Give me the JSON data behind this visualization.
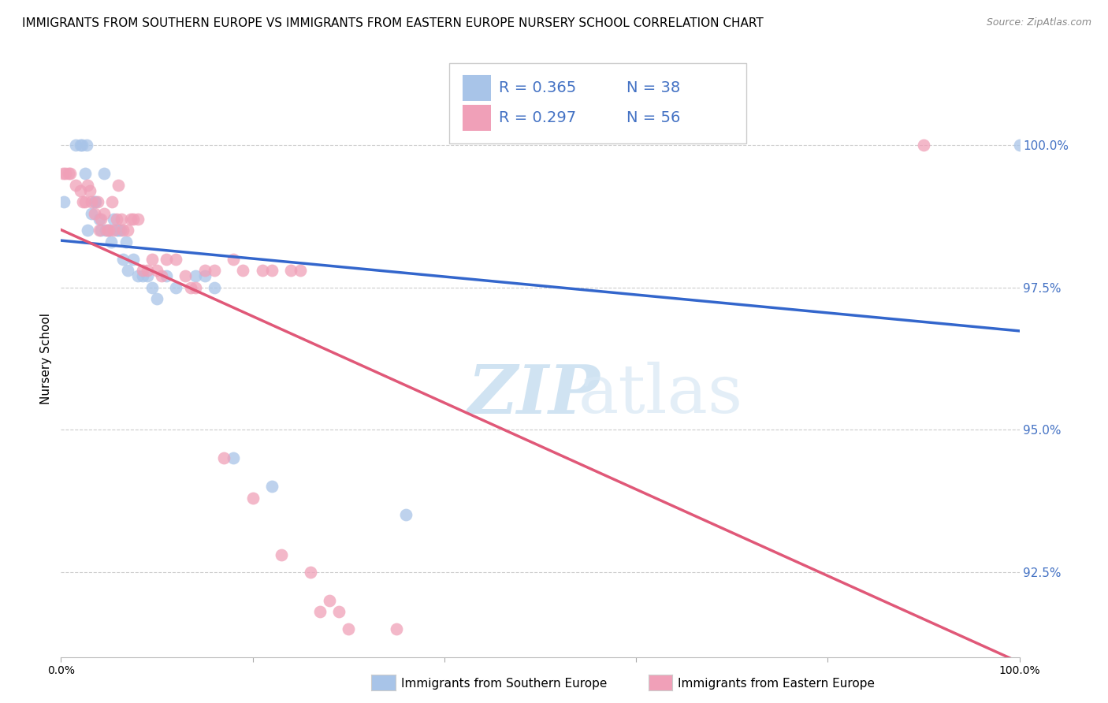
{
  "title": "IMMIGRANTS FROM SOUTHERN EUROPE VS IMMIGRANTS FROM EASTERN EUROPE NURSERY SCHOOL CORRELATION CHART",
  "source": "Source: ZipAtlas.com",
  "ylabel": "Nursery School",
  "watermark_zip": "ZIP",
  "watermark_atlas": "atlas",
  "series_blue": {
    "label": "Immigrants from Southern Europe",
    "R": 0.365,
    "N": 38,
    "color": "#a8c4e8",
    "line_color": "#3366cc",
    "x": [
      0.3,
      1.5,
      2.0,
      2.2,
      2.5,
      2.7,
      2.8,
      3.2,
      3.5,
      3.6,
      4.0,
      4.2,
      4.5,
      4.7,
      5.0,
      5.2,
      5.5,
      5.8,
      6.0,
      6.2,
      6.5,
      6.8,
      7.0,
      7.5,
      8.0,
      8.5,
      9.0,
      9.5,
      10.0,
      11.0,
      12.0,
      14.0,
      15.0,
      16.0,
      18.0,
      22.0,
      36.0,
      100.0
    ],
    "y": [
      99.0,
      100.0,
      100.0,
      100.0,
      99.5,
      100.0,
      98.5,
      98.8,
      99.0,
      99.0,
      98.7,
      98.5,
      99.5,
      98.5,
      98.5,
      98.3,
      98.7,
      98.5,
      98.5,
      98.5,
      98.0,
      98.3,
      97.8,
      98.0,
      97.7,
      97.7,
      97.7,
      97.5,
      97.3,
      97.7,
      97.5,
      97.7,
      97.7,
      97.5,
      94.5,
      94.0,
      93.5,
      100.0
    ]
  },
  "series_pink": {
    "label": "Immigrants from Eastern Europe",
    "R": 0.297,
    "N": 56,
    "color": "#f0a0b8",
    "line_color": "#e05878",
    "x": [
      0.2,
      0.5,
      0.8,
      1.0,
      1.5,
      2.0,
      2.3,
      2.5,
      2.8,
      3.0,
      3.2,
      3.5,
      3.8,
      4.0,
      4.2,
      4.5,
      4.8,
      5.0,
      5.3,
      5.5,
      5.8,
      6.0,
      6.3,
      6.5,
      7.0,
      7.3,
      7.5,
      8.0,
      8.5,
      9.0,
      9.5,
      10.0,
      10.5,
      11.0,
      12.0,
      13.0,
      13.5,
      14.0,
      15.0,
      16.0,
      17.0,
      18.0,
      19.0,
      20.0,
      21.0,
      22.0,
      23.0,
      24.0,
      25.0,
      26.0,
      27.0,
      28.0,
      29.0,
      30.0,
      35.0,
      90.0
    ],
    "y": [
      99.5,
      99.5,
      99.5,
      99.5,
      99.3,
      99.2,
      99.0,
      99.0,
      99.3,
      99.2,
      99.0,
      98.8,
      99.0,
      98.5,
      98.7,
      98.8,
      98.5,
      98.5,
      99.0,
      98.5,
      98.7,
      99.3,
      98.7,
      98.5,
      98.5,
      98.7,
      98.7,
      98.7,
      97.8,
      97.8,
      98.0,
      97.8,
      97.7,
      98.0,
      98.0,
      97.7,
      97.5,
      97.5,
      97.8,
      97.8,
      94.5,
      98.0,
      97.8,
      93.8,
      97.8,
      97.8,
      92.8,
      97.8,
      97.8,
      92.5,
      91.8,
      92.0,
      91.8,
      91.5,
      91.5,
      100.0
    ]
  },
  "ylim": [
    91.0,
    101.5
  ],
  "xlim": [
    0,
    100
  ],
  "ytick_values": [
    92.5,
    95.0,
    97.5,
    100.0
  ],
  "ytick_labels": [
    "92.5%",
    "95.0%",
    "97.5%",
    "100.0%"
  ],
  "right_axis_color": "#4472c4",
  "background_color": "#ffffff",
  "title_fontsize": 11,
  "source_fontsize": 9
}
